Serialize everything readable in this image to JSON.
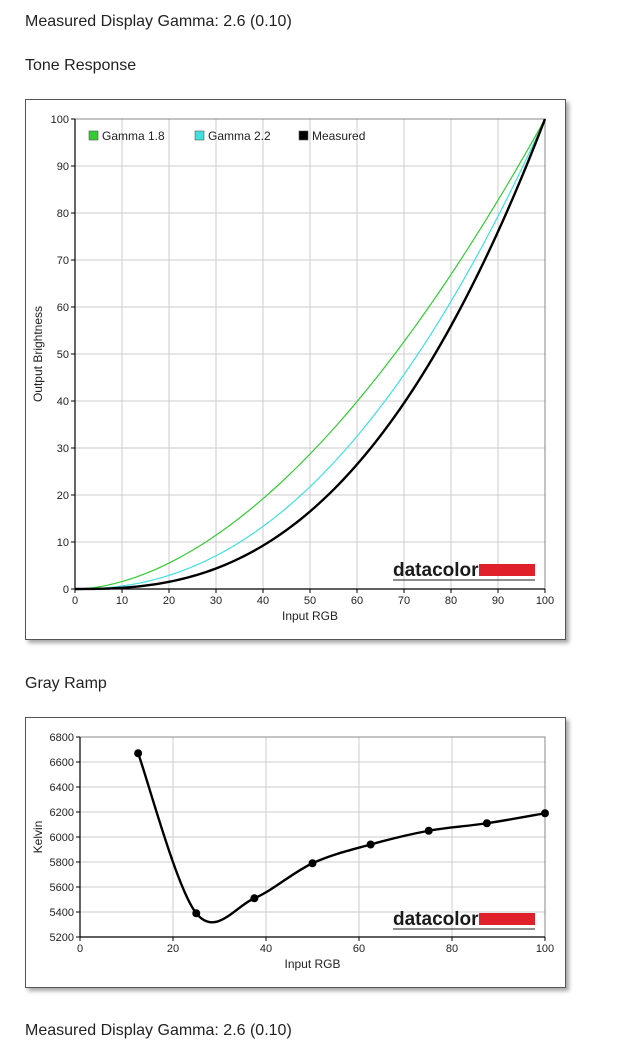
{
  "page": {
    "heading_top": "Measured Display Gamma: 2.6 (0.10)",
    "heading_bottom": "Measured Display Gamma: 2.6 (0.10)"
  },
  "logo": {
    "text": "datacolor",
    "accent_color": "#e0202a"
  },
  "chart_data": [
    {
      "id": "tone",
      "type": "line",
      "title": "Tone Response",
      "xlabel": "Input RGB",
      "ylabel": "Output Brightness",
      "xlim": [
        0,
        100
      ],
      "ylim": [
        0,
        100
      ],
      "xticks": [
        0,
        10,
        20,
        30,
        40,
        50,
        60,
        70,
        80,
        90,
        100
      ],
      "yticks": [
        0,
        10,
        20,
        30,
        40,
        50,
        60,
        70,
        80,
        90,
        100
      ],
      "grid": true,
      "legend_position": "top-left",
      "series": [
        {
          "name": "Gamma 1.8",
          "color": "#33cc33",
          "gamma": 1.8,
          "x": [
            0,
            10,
            20,
            30,
            40,
            50,
            60,
            70,
            80,
            90,
            100
          ],
          "y": [
            0,
            1.6,
            5.5,
            11.5,
            19.2,
            28.7,
            39.9,
            52.6,
            66.9,
            82.8,
            100
          ]
        },
        {
          "name": "Gamma 2.2",
          "color": "#40e0e0",
          "gamma": 2.2,
          "x": [
            0,
            10,
            20,
            30,
            40,
            50,
            60,
            70,
            80,
            90,
            100
          ],
          "y": [
            0,
            0.6,
            2.9,
            7.1,
            13.3,
            21.8,
            32.4,
            45.6,
            61.2,
            79.3,
            100
          ]
        },
        {
          "name": "Measured",
          "color": "#000000",
          "gamma": 2.6,
          "x": [
            0,
            10,
            20,
            30,
            40,
            50,
            60,
            70,
            80,
            90,
            100
          ],
          "y": [
            0,
            0.3,
            1.5,
            4.4,
            9.2,
            16.5,
            26.6,
            39.6,
            56.0,
            76.0,
            100
          ]
        }
      ]
    },
    {
      "id": "gray",
      "type": "line",
      "title": "Gray Ramp",
      "xlabel": "Input RGB",
      "ylabel": "Kelvin",
      "xlim": [
        0,
        100
      ],
      "ylim": [
        5200,
        6800
      ],
      "xticks": [
        0,
        20,
        40,
        60,
        80,
        100
      ],
      "yticks": [
        5200,
        5400,
        5600,
        5800,
        6000,
        6200,
        6400,
        6600,
        6800
      ],
      "grid": true,
      "series": [
        {
          "name": "",
          "color": "#000000",
          "x": [
            12.5,
            25,
            37.5,
            50,
            62.5,
            75,
            87.5,
            100
          ],
          "y": [
            6670,
            5390,
            5510,
            5790,
            5940,
            6050,
            6110,
            6190
          ]
        }
      ]
    }
  ]
}
